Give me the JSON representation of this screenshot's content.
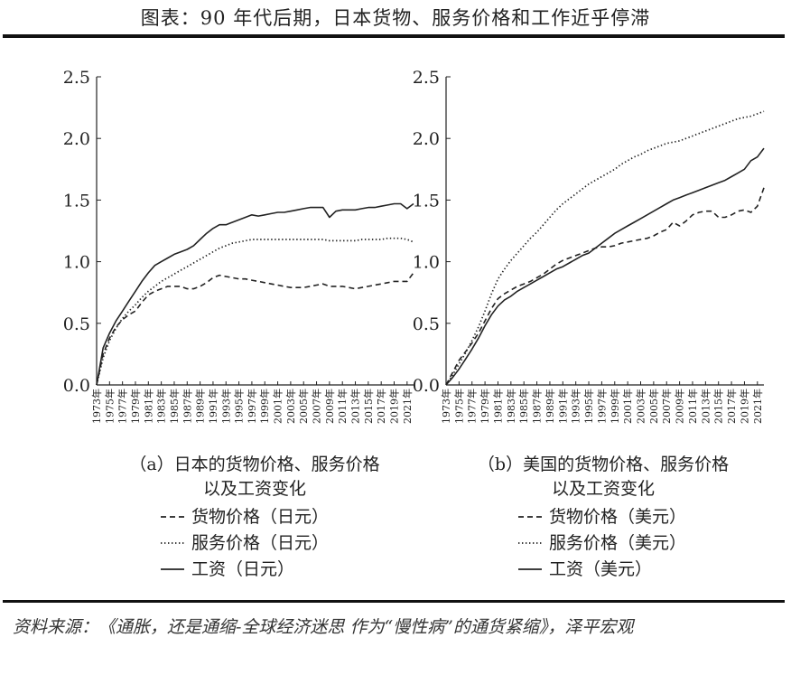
{
  "page": {
    "title": "图表：90 年代后期，日本货物、服务价格和工作近乎停滞",
    "source": "资料来源：《通胀，还是通缩-全球经济迷思 作为“慢性病”的通货紧缩》，泽平宏观"
  },
  "line_styles": {
    "货物价格": "dashed",
    "服务价格": "dotted",
    "工资": "solid"
  },
  "chart_data": [
    {
      "type": "line",
      "caption_lines": [
        "（a）日本的货物价格、服务价格",
        "以及工资变化"
      ],
      "ylim": [
        0,
        2.5
      ],
      "yticks": [
        "0.0",
        "0.5",
        "1.0",
        "1.5",
        "2.0",
        "2.5"
      ],
      "xticks": [
        "1973年",
        "1975年",
        "1977年",
        "1979年",
        "1981年",
        "1983年",
        "1985年",
        "1987年",
        "1989年",
        "1991年",
        "1993年",
        "1995年",
        "1997年",
        "1999年",
        "2001年",
        "2003年",
        "2005年",
        "2007年",
        "2009年",
        "2011年",
        "2013年",
        "2015年",
        "2017年",
        "2019年",
        "2021年"
      ],
      "xrange": [
        1973,
        2022
      ],
      "series": [
        {
          "name": "货物价格（日元）",
          "key": "货物价格",
          "x": [
            1973,
            1974,
            1975,
            1976,
            1977,
            1978,
            1979,
            1980,
            1981,
            1982,
            1983,
            1984,
            1985,
            1986,
            1987,
            1988,
            1989,
            1990,
            1991,
            1992,
            1993,
            1994,
            1995,
            1996,
            1997,
            1998,
            1999,
            2000,
            2001,
            2002,
            2003,
            2004,
            2005,
            2006,
            2007,
            2008,
            2009,
            2010,
            2011,
            2012,
            2013,
            2014,
            2015,
            2016,
            2017,
            2018,
            2019,
            2020,
            2021,
            2022
          ],
          "values": [
            0.0,
            0.25,
            0.38,
            0.47,
            0.53,
            0.57,
            0.6,
            0.67,
            0.73,
            0.76,
            0.78,
            0.8,
            0.8,
            0.8,
            0.78,
            0.78,
            0.8,
            0.83,
            0.87,
            0.89,
            0.88,
            0.87,
            0.86,
            0.86,
            0.85,
            0.84,
            0.83,
            0.82,
            0.81,
            0.8,
            0.79,
            0.79,
            0.79,
            0.8,
            0.81,
            0.82,
            0.8,
            0.8,
            0.8,
            0.79,
            0.78,
            0.79,
            0.8,
            0.81,
            0.82,
            0.83,
            0.84,
            0.84,
            0.84,
            0.91
          ]
        },
        {
          "name": "服务价格（日元）",
          "key": "服务价格",
          "x": [
            1973,
            1974,
            1975,
            1976,
            1977,
            1978,
            1979,
            1980,
            1981,
            1982,
            1983,
            1984,
            1985,
            1986,
            1987,
            1988,
            1989,
            1990,
            1991,
            1992,
            1993,
            1994,
            1995,
            1996,
            1997,
            1998,
            1999,
            2000,
            2001,
            2002,
            2003,
            2004,
            2005,
            2006,
            2007,
            2008,
            2009,
            2010,
            2011,
            2012,
            2013,
            2014,
            2015,
            2016,
            2017,
            2018,
            2019,
            2020,
            2021,
            2022
          ],
          "values": [
            0.0,
            0.22,
            0.36,
            0.46,
            0.54,
            0.6,
            0.65,
            0.71,
            0.76,
            0.8,
            0.84,
            0.87,
            0.9,
            0.93,
            0.96,
            0.99,
            1.02,
            1.05,
            1.08,
            1.11,
            1.13,
            1.15,
            1.16,
            1.17,
            1.18,
            1.18,
            1.18,
            1.18,
            1.18,
            1.18,
            1.18,
            1.18,
            1.18,
            1.18,
            1.18,
            1.18,
            1.17,
            1.17,
            1.17,
            1.17,
            1.17,
            1.18,
            1.18,
            1.18,
            1.18,
            1.19,
            1.19,
            1.19,
            1.18,
            1.16
          ]
        },
        {
          "name": "工资（日元）",
          "key": "工资",
          "x": [
            1973,
            1974,
            1975,
            1976,
            1977,
            1978,
            1979,
            1980,
            1981,
            1982,
            1983,
            1984,
            1985,
            1986,
            1987,
            1988,
            1989,
            1990,
            1991,
            1992,
            1993,
            1994,
            1995,
            1996,
            1997,
            1998,
            1999,
            2000,
            2001,
            2002,
            2003,
            2004,
            2005,
            2006,
            2007,
            2008,
            2009,
            2010,
            2011,
            2012,
            2013,
            2014,
            2015,
            2016,
            2017,
            2018,
            2019,
            2020,
            2021,
            2022
          ],
          "values": [
            0.0,
            0.3,
            0.42,
            0.52,
            0.6,
            0.68,
            0.76,
            0.84,
            0.91,
            0.97,
            1.0,
            1.03,
            1.06,
            1.08,
            1.1,
            1.13,
            1.18,
            1.23,
            1.27,
            1.3,
            1.3,
            1.32,
            1.34,
            1.36,
            1.38,
            1.37,
            1.38,
            1.39,
            1.4,
            1.4,
            1.41,
            1.42,
            1.43,
            1.44,
            1.44,
            1.44,
            1.36,
            1.41,
            1.42,
            1.42,
            1.42,
            1.43,
            1.44,
            1.44,
            1.45,
            1.46,
            1.47,
            1.47,
            1.43,
            1.47
          ]
        }
      ]
    },
    {
      "type": "line",
      "caption_lines": [
        "（b）美国的货物价格、服务价格",
        "以及工资变化"
      ],
      "ylim": [
        0,
        2.5
      ],
      "yticks": [
        "0.0",
        "0.5",
        "1.0",
        "1.5",
        "2.0",
        "2.5"
      ],
      "xticks": [
        "1973年",
        "1975年",
        "1977年",
        "1979年",
        "1981年",
        "1983年",
        "1985年",
        "1987年",
        "1989年",
        "1991年",
        "1993年",
        "1995年",
        "1997年",
        "1999年",
        "2001年",
        "2003年",
        "2005年",
        "2007年",
        "2009年",
        "2011年",
        "2013年",
        "2015年",
        "2017年",
        "2019年",
        "2021年"
      ],
      "xrange": [
        1973,
        2022
      ],
      "series": [
        {
          "name": "货物价格（美元）",
          "key": "货物价格",
          "x": [
            1973,
            1974,
            1975,
            1976,
            1977,
            1978,
            1979,
            1980,
            1981,
            1982,
            1983,
            1984,
            1985,
            1986,
            1987,
            1988,
            1989,
            1990,
            1991,
            1992,
            1993,
            1994,
            1995,
            1996,
            1997,
            1998,
            1999,
            2000,
            2001,
            2002,
            2003,
            2004,
            2005,
            2006,
            2007,
            2008,
            2009,
            2010,
            2011,
            2012,
            2013,
            2014,
            2015,
            2016,
            2017,
            2018,
            2019,
            2020,
            2021,
            2022
          ],
          "values": [
            0.0,
            0.1,
            0.2,
            0.27,
            0.34,
            0.42,
            0.52,
            0.62,
            0.7,
            0.74,
            0.77,
            0.8,
            0.82,
            0.84,
            0.87,
            0.9,
            0.94,
            0.98,
            1.01,
            1.03,
            1.05,
            1.07,
            1.09,
            1.11,
            1.12,
            1.12,
            1.13,
            1.15,
            1.16,
            1.17,
            1.18,
            1.19,
            1.21,
            1.24,
            1.26,
            1.32,
            1.29,
            1.33,
            1.38,
            1.4,
            1.41,
            1.41,
            1.36,
            1.36,
            1.38,
            1.41,
            1.42,
            1.4,
            1.45,
            1.6
          ]
        },
        {
          "name": "服务价格（美元）",
          "key": "服务价格",
          "x": [
            1973,
            1974,
            1975,
            1976,
            1977,
            1978,
            1979,
            1980,
            1981,
            1982,
            1983,
            1984,
            1985,
            1986,
            1987,
            1988,
            1989,
            1990,
            1991,
            1992,
            1993,
            1994,
            1995,
            1996,
            1997,
            1998,
            1999,
            2000,
            2001,
            2002,
            2003,
            2004,
            2005,
            2006,
            2007,
            2008,
            2009,
            2010,
            2011,
            2012,
            2013,
            2014,
            2015,
            2016,
            2017,
            2018,
            2019,
            2020,
            2021,
            2022
          ],
          "values": [
            0.0,
            0.08,
            0.17,
            0.26,
            0.36,
            0.47,
            0.6,
            0.74,
            0.86,
            0.94,
            1.01,
            1.07,
            1.13,
            1.19,
            1.24,
            1.3,
            1.36,
            1.42,
            1.47,
            1.51,
            1.55,
            1.59,
            1.63,
            1.66,
            1.69,
            1.72,
            1.75,
            1.79,
            1.82,
            1.85,
            1.87,
            1.9,
            1.92,
            1.94,
            1.96,
            1.97,
            1.98,
            2.0,
            2.02,
            2.04,
            2.06,
            2.08,
            2.1,
            2.12,
            2.14,
            2.16,
            2.17,
            2.18,
            2.2,
            2.22
          ]
        },
        {
          "name": "工资（美元）",
          "key": "工资",
          "x": [
            1973,
            1974,
            1975,
            1976,
            1977,
            1978,
            1979,
            1980,
            1981,
            1982,
            1983,
            1984,
            1985,
            1986,
            1987,
            1988,
            1989,
            1990,
            1991,
            1992,
            1993,
            1994,
            1995,
            1996,
            1997,
            1998,
            1999,
            2000,
            2001,
            2002,
            2003,
            2004,
            2005,
            2006,
            2007,
            2008,
            2009,
            2010,
            2011,
            2012,
            2013,
            2014,
            2015,
            2016,
            2017,
            2018,
            2019,
            2020,
            2021,
            2022
          ],
          "values": [
            0.0,
            0.06,
            0.13,
            0.21,
            0.29,
            0.38,
            0.48,
            0.57,
            0.64,
            0.69,
            0.72,
            0.76,
            0.79,
            0.82,
            0.85,
            0.88,
            0.91,
            0.94,
            0.96,
            0.99,
            1.02,
            1.05,
            1.07,
            1.11,
            1.15,
            1.19,
            1.23,
            1.26,
            1.29,
            1.32,
            1.35,
            1.38,
            1.41,
            1.44,
            1.47,
            1.5,
            1.52,
            1.54,
            1.56,
            1.58,
            1.6,
            1.62,
            1.64,
            1.66,
            1.69,
            1.72,
            1.75,
            1.82,
            1.85,
            1.92
          ]
        }
      ]
    }
  ]
}
